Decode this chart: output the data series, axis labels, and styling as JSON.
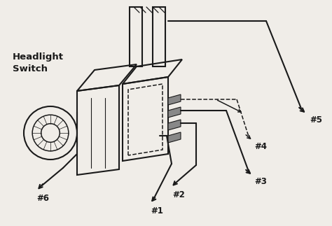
{
  "background_color": "#f0ede8",
  "line_color": "#1a1a1a",
  "figsize": [
    4.74,
    3.23
  ],
  "dpi": 100,
  "switch_label": "Headlight\nSwitch",
  "label_fontsize": 8.5,
  "wire_labels": [
    "#5",
    "#4",
    "#3",
    "#2",
    "#1",
    "#6"
  ]
}
